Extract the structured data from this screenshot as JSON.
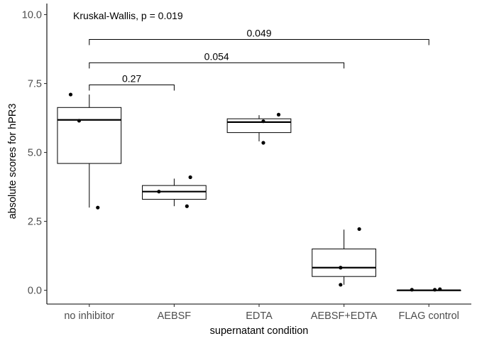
{
  "chart_data": {
    "type": "box",
    "xlabel": "supernatant condition",
    "ylabel": "absolute scores for hPR3",
    "ylim": [
      -0.5,
      10.4
    ],
    "yticks": [
      0.0,
      2.5,
      5.0,
      7.5,
      10.0
    ],
    "ytick_labels": [
      "0.0",
      "2.5",
      "5.0",
      "7.5",
      "10.0"
    ],
    "grid": false,
    "legend": "none",
    "annotation": "Kruskal-Wallis, p = 0.019",
    "categories": [
      "no inhibitor",
      "AEBSF",
      "EDTA",
      "AEBSF+EDTA",
      "FLAG control"
    ],
    "boxes": [
      {
        "category": "no inhibitor",
        "whisker_low": 3.0,
        "q1": 4.6,
        "median": 6.18,
        "q3": 6.63,
        "whisker_high": 7.1
      },
      {
        "category": "AEBSF",
        "whisker_low": 3.05,
        "q1": 3.3,
        "median": 3.58,
        "q3": 3.8,
        "whisker_high": 4.05
      },
      {
        "category": "EDTA",
        "whisker_low": 5.4,
        "q1": 5.72,
        "median": 6.1,
        "q3": 6.22,
        "whisker_high": 6.35
      },
      {
        "category": "AEBSF+EDTA",
        "whisker_low": 0.2,
        "q1": 0.5,
        "median": 0.82,
        "q3": 1.5,
        "whisker_high": 2.2
      },
      {
        "category": "FLAG control",
        "whisker_low": 0.0,
        "q1": 0.0,
        "median": 0.0,
        "q3": 0.0,
        "whisker_high": 0.0
      }
    ],
    "points": [
      {
        "category": "no inhibitor",
        "y": 7.1,
        "jitter": -0.22
      },
      {
        "category": "no inhibitor",
        "y": 6.15,
        "jitter": -0.12
      },
      {
        "category": "no inhibitor",
        "y": 3.0,
        "jitter": 0.1
      },
      {
        "category": "AEBSF",
        "y": 4.1,
        "jitter": 0.19
      },
      {
        "category": "AEBSF",
        "y": 3.58,
        "jitter": -0.18
      },
      {
        "category": "AEBSF",
        "y": 3.05,
        "jitter": 0.15
      },
      {
        "category": "EDTA",
        "y": 6.37,
        "jitter": 0.23
      },
      {
        "category": "EDTA",
        "y": 6.13,
        "jitter": 0.05
      },
      {
        "category": "EDTA",
        "y": 5.35,
        "jitter": 0.05
      },
      {
        "category": "AEBSF+EDTA",
        "y": 2.22,
        "jitter": 0.18
      },
      {
        "category": "AEBSF+EDTA",
        "y": 0.82,
        "jitter": -0.04
      },
      {
        "category": "AEBSF+EDTA",
        "y": 0.2,
        "jitter": -0.04
      },
      {
        "category": "FLAG control",
        "y": 0.02,
        "jitter": -0.2
      },
      {
        "category": "FLAG control",
        "y": 0.02,
        "jitter": 0.07
      },
      {
        "category": "FLAG control",
        "y": 0.04,
        "jitter": 0.13
      }
    ],
    "comparisons": [
      {
        "from": "no inhibitor",
        "to": "AEBSF",
        "y": 7.45,
        "label": "0.27"
      },
      {
        "from": "no inhibitor",
        "to": "AEBSF+EDTA",
        "y": 8.25,
        "label": "0.054"
      },
      {
        "from": "no inhibitor",
        "to": "FLAG control",
        "y": 9.1,
        "label": "0.049"
      }
    ]
  }
}
